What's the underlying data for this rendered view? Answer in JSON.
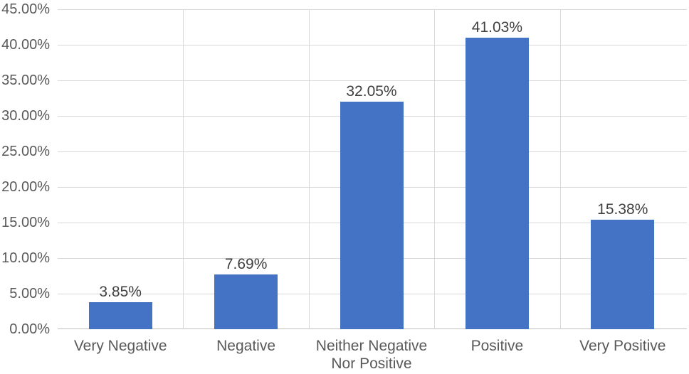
{
  "chart_data": {
    "type": "bar",
    "title": "",
    "xlabel": "",
    "ylabel": "",
    "legend": "none",
    "categories": [
      "Very Negative",
      "Negative",
      "Neither Negative Nor Positive",
      "Positive",
      "Very Positive"
    ],
    "values": [
      3.85,
      7.69,
      32.05,
      41.03,
      15.38
    ],
    "value_labels": [
      "3.85%",
      "7.69%",
      "32.05%",
      "41.03%",
      "15.38%"
    ],
    "y_axis": {
      "min": 0,
      "max": 45,
      "step": 5,
      "tick_labels": [
        "0.00%",
        "5.00%",
        "10.00%",
        "15.00%",
        "20.00%",
        "25.00%",
        "30.00%",
        "35.00%",
        "40.00%",
        "45.00%"
      ]
    },
    "grid": {
      "horizontal": true,
      "vertical_between_categories": true,
      "edge_vertical_lines": false
    },
    "colors": {
      "bar": "#4472C4",
      "gridline": "#D9D9D9",
      "axis_line": "#BFBFBF",
      "tick_label": "#595959",
      "category_label": "#595959",
      "data_label": "#404040",
      "background": "#FFFFFF"
    }
  }
}
